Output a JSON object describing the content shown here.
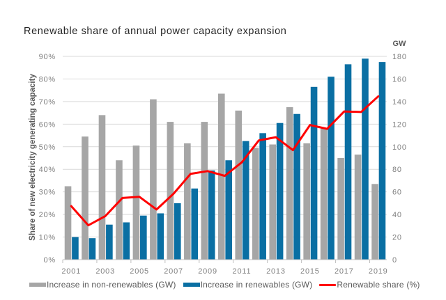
{
  "chart_data": {
    "type": "bar",
    "title": "Renewable share of annual power capacity expansion",
    "xlabel": "",
    "ylabel": "Share of new electricity generating capacity",
    "y2label": "GW",
    "categories": [
      "2001",
      "2002",
      "2003",
      "2004",
      "2005",
      "2006",
      "2007",
      "2008",
      "2009",
      "2010",
      "2011",
      "2012",
      "2013",
      "2014",
      "2015",
      "2016",
      "2017",
      "2018",
      "2019"
    ],
    "x_tick_labels": [
      "2001",
      "2003",
      "2005",
      "2007",
      "2009",
      "2011",
      "2013",
      "2015",
      "2017",
      "2019"
    ],
    "ylim": [
      0,
      90
    ],
    "y_ticks": [
      "0%",
      "10%",
      "20%",
      "30%",
      "40%",
      "50%",
      "60%",
      "70%",
      "80%",
      "90%"
    ],
    "y2lim": [
      0,
      180
    ],
    "y2_ticks": [
      "0",
      "20",
      "40",
      "60",
      "80",
      "100",
      "120",
      "140",
      "160",
      "180"
    ],
    "grid": true,
    "legend_position": "bottom",
    "series": [
      {
        "name": "Increase in non-renewables (GW)",
        "type": "bar",
        "axis": "right",
        "color": "#a6a6a6",
        "values": [
          65,
          109,
          128,
          88,
          101,
          142,
          122,
          103,
          122,
          147,
          132,
          99,
          102,
          135,
          103,
          116,
          90,
          93,
          67
        ]
      },
      {
        "name": "Increase in renewables (GW)",
        "type": "bar",
        "axis": "right",
        "color": "#0a6fa3",
        "values": [
          20,
          19,
          31,
          33,
          39,
          41,
          50,
          63,
          79,
          88,
          105,
          112,
          121,
          129,
          153,
          162,
          173,
          178,
          175
        ]
      },
      {
        "name": "Renewable share (%)",
        "type": "line",
        "axis": "left",
        "color": "#ff0000",
        "values": [
          23.7,
          15.2,
          19.3,
          27.3,
          27.8,
          22.2,
          29.2,
          38.0,
          39.2,
          37.1,
          43.1,
          52.8,
          54.2,
          48.5,
          59.6,
          57.9,
          65.6,
          65.4,
          72.3
        ]
      }
    ]
  }
}
